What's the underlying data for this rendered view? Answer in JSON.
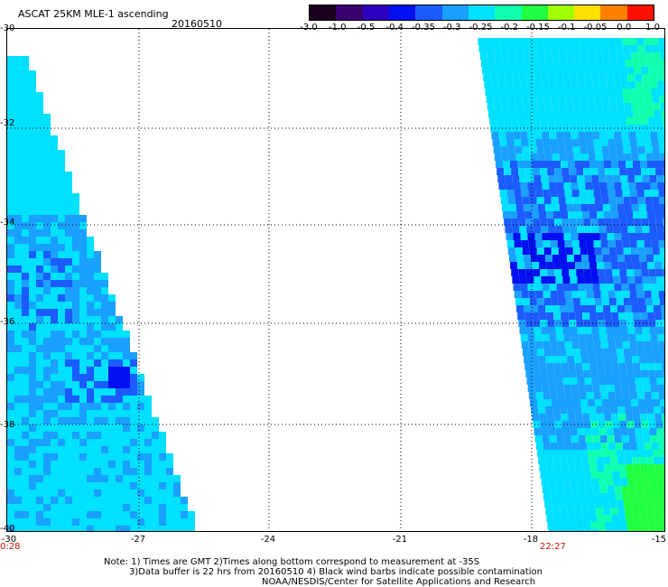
{
  "header": {
    "title": "ASCAT 25KM MLE-1 ascending",
    "date": "20160510"
  },
  "colorbar": {
    "ticks": [
      "-3.0",
      "-1.0",
      "-0.5",
      "-0.4",
      "-0.35",
      "-0.3",
      "-0.25",
      "-0.2",
      "-0.15",
      "-0.1",
      "-0.05",
      "0.0",
      "1.0"
    ],
    "colors": [
      "#1a001a",
      "#3a0070",
      "#3000c0",
      "#0010f0",
      "#1c5cff",
      "#1aa0ff",
      "#00e0ff",
      "#10ffb0",
      "#20ff40",
      "#a0ff00",
      "#ffe000",
      "#ff8000",
      "#ff1000"
    ]
  },
  "map": {
    "y_ticks": [
      "-30",
      "-32",
      "-34",
      "-36",
      "-38",
      "-40"
    ],
    "x_ticks": [
      "-30",
      "-27",
      "-24",
      "-21",
      "-18",
      "-15"
    ],
    "time_left": "0:28",
    "time_right": "22:27"
  },
  "notes": {
    "line1": "Note: 1) Times are GMT 2)Times along bottom correspond to measurement at -35S",
    "line2": "3)Data buffer is 22 hrs from 20160510 4) Black wind barbs indicate possible contamination",
    "line3": "NOAA/NESDIS/Center for Satellite Applications and Research"
  }
}
